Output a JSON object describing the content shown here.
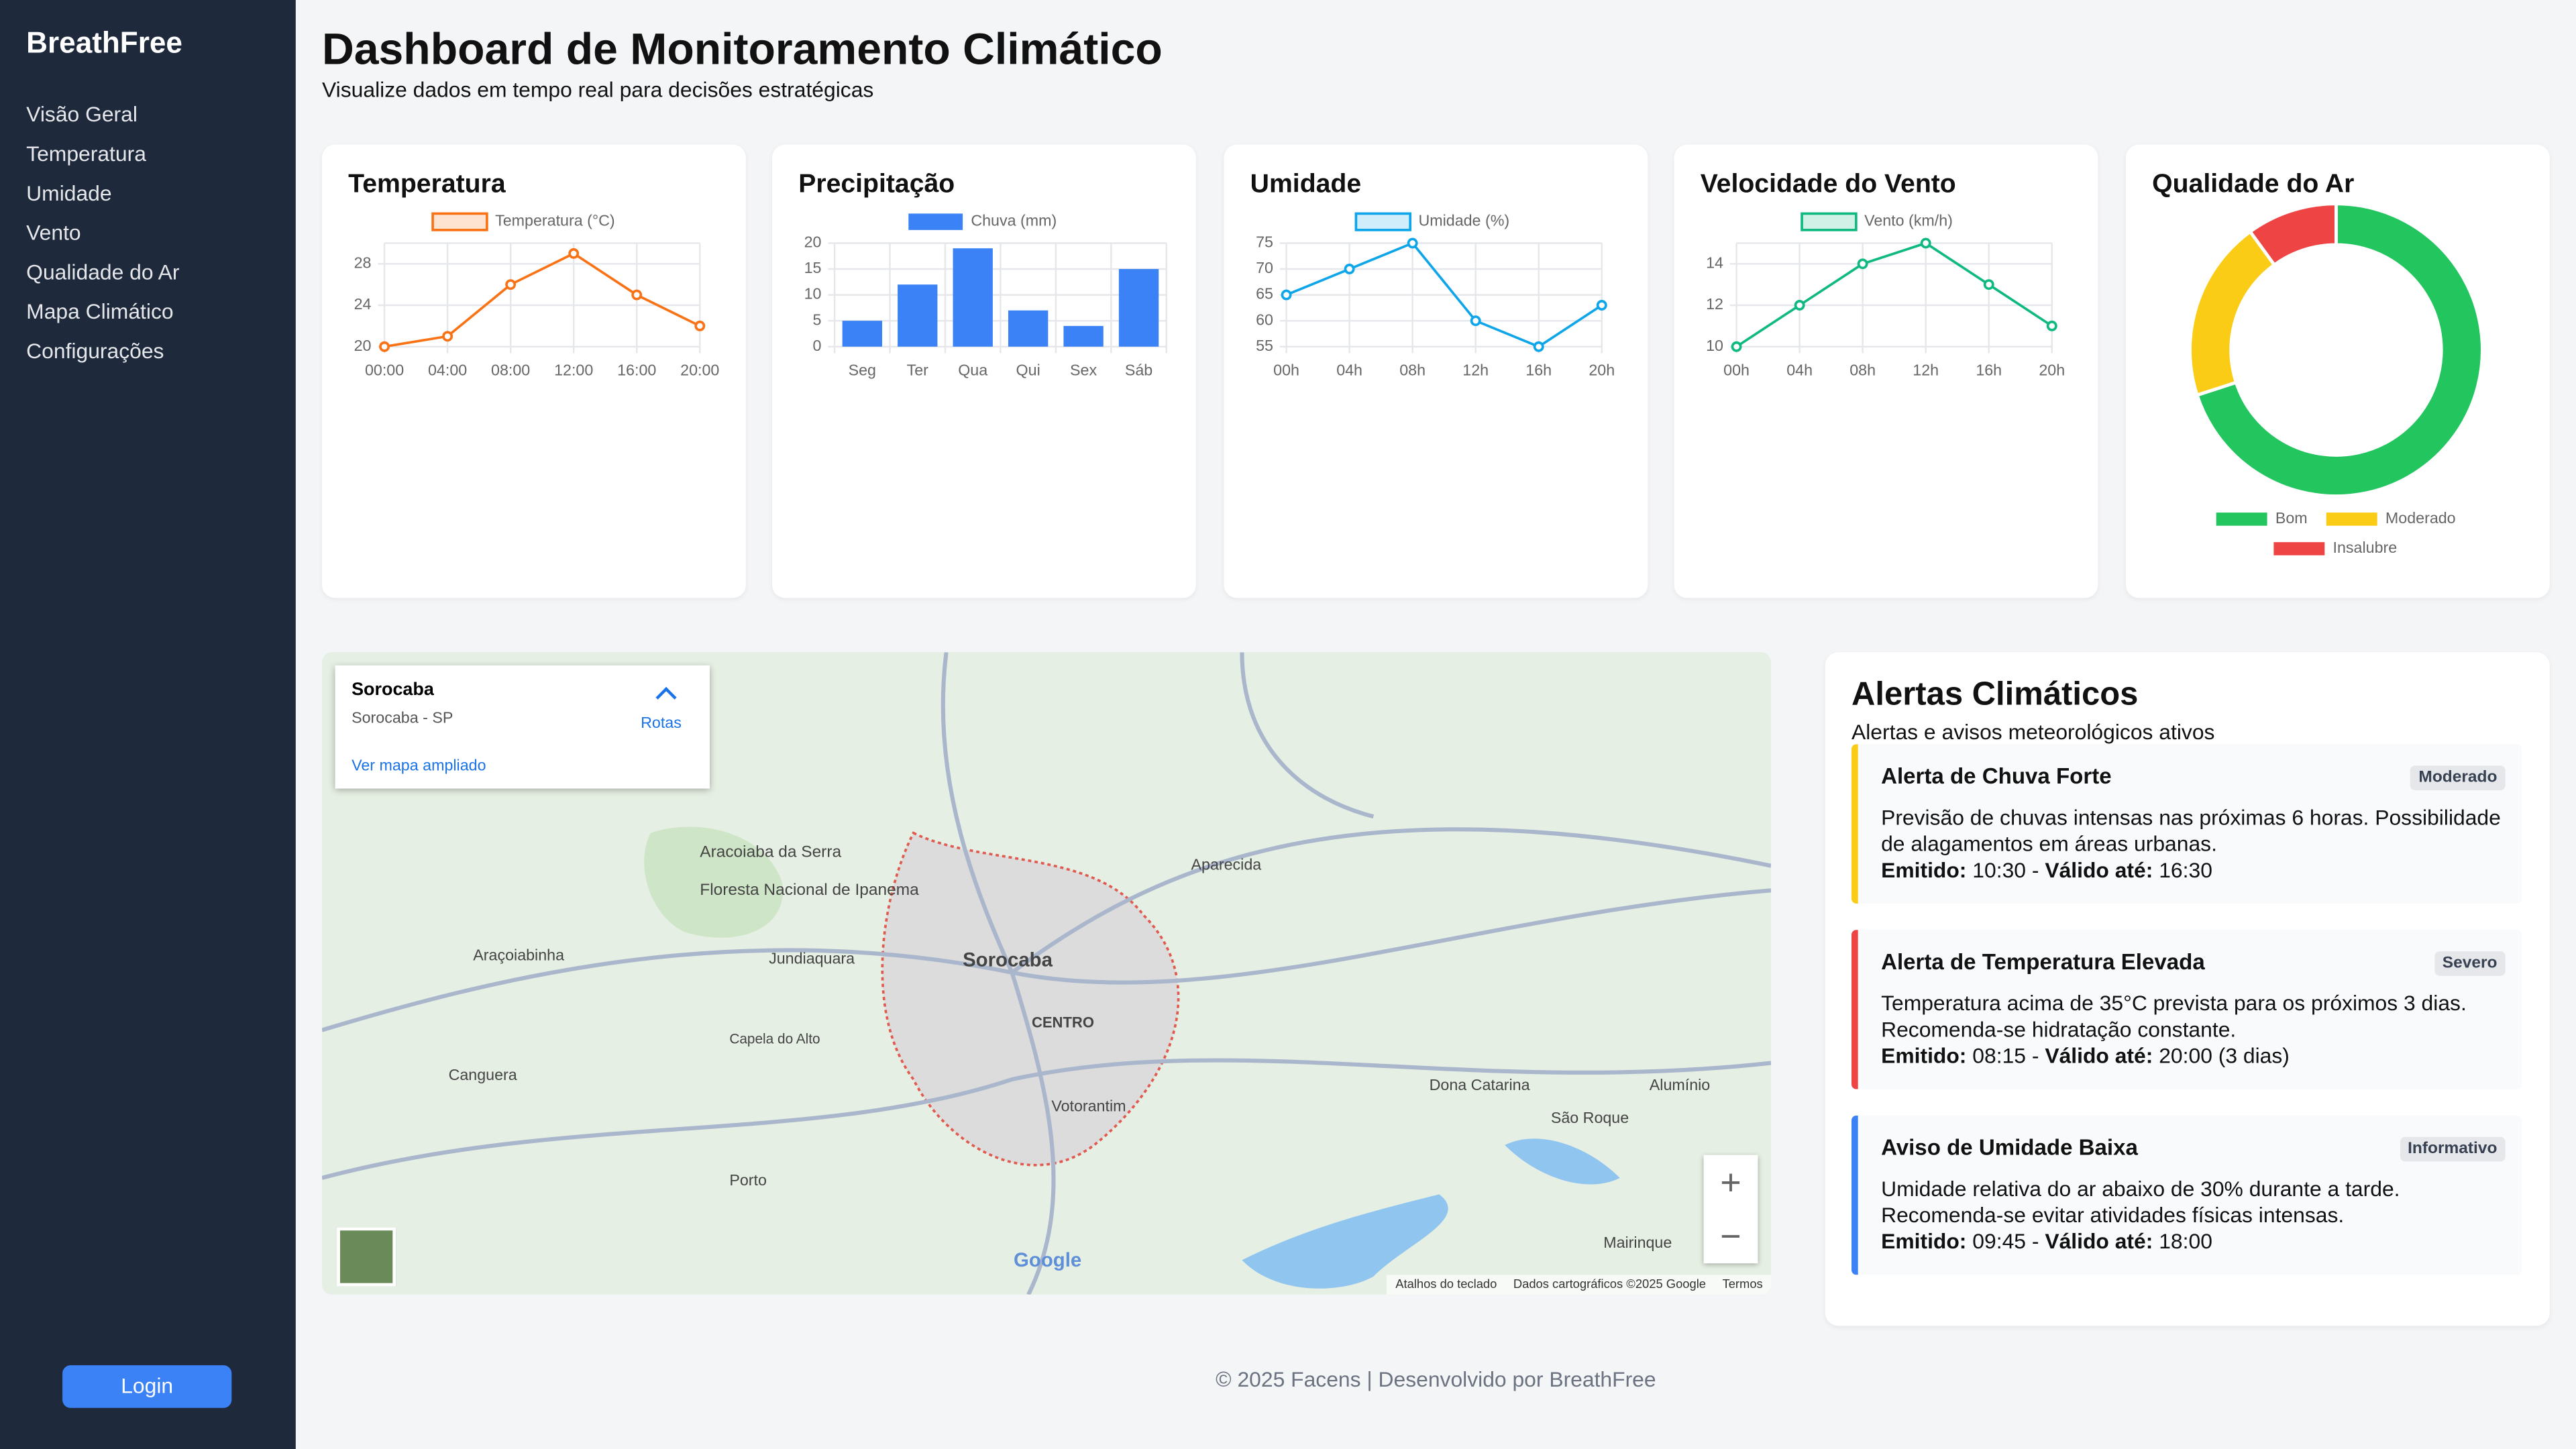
{
  "sidebar": {
    "brand": "BreathFree",
    "nav": [
      "Visão Geral",
      "Temperatura",
      "Umidade",
      "Vento",
      "Qualidade do Ar",
      "Mapa Climático",
      "Configurações"
    ],
    "login": "Login"
  },
  "header": {
    "title": "Dashboard de Monitoramento Climático",
    "subtitle": "Visualize dados em tempo real para decisões estratégicas"
  },
  "chart_data": [
    {
      "type": "line",
      "title": "Temperatura",
      "categories": [
        "00:00",
        "04:00",
        "08:00",
        "12:00",
        "16:00",
        "20:00"
      ],
      "series": [
        {
          "name": "Temperatura (°C)",
          "color": "#f97316",
          "values": [
            20,
            21,
            26,
            29,
            25,
            22
          ]
        }
      ],
      "ylim": [
        20,
        30
      ],
      "yticks": [
        20,
        24,
        28
      ],
      "grid": true
    },
    {
      "type": "bar",
      "title": "Precipitação",
      "categories": [
        "Seg",
        "Ter",
        "Qua",
        "Qui",
        "Sex",
        "Sáb"
      ],
      "series": [
        {
          "name": "Chuva (mm)",
          "color": "#3b82f6",
          "values": [
            5,
            12,
            19,
            7,
            4,
            15
          ]
        }
      ],
      "ylim": [
        0,
        20
      ],
      "yticks": [
        0,
        5,
        10,
        15,
        20
      ],
      "grid": true
    },
    {
      "type": "line",
      "title": "Umidade",
      "categories": [
        "00h",
        "04h",
        "08h",
        "12h",
        "16h",
        "20h"
      ],
      "series": [
        {
          "name": "Umidade (%)",
          "color": "#0ea5e9",
          "values": [
            65,
            70,
            75,
            60,
            55,
            63
          ]
        }
      ],
      "ylim": [
        55,
        75
      ],
      "yticks": [
        55,
        60,
        65,
        70,
        75
      ],
      "grid": true
    },
    {
      "type": "line",
      "title": "Velocidade do Vento",
      "categories": [
        "00h",
        "04h",
        "08h",
        "12h",
        "16h",
        "20h"
      ],
      "series": [
        {
          "name": "Vento (km/h)",
          "color": "#10b981",
          "values": [
            10,
            12,
            14,
            15,
            13,
            11
          ]
        }
      ],
      "ylim": [
        10,
        15
      ],
      "yticks": [
        10,
        12,
        14
      ],
      "grid": true
    },
    {
      "type": "doughnut",
      "title": "Qualidade do Ar",
      "categories": [
        "Bom",
        "Moderado",
        "Insalubre"
      ],
      "values": [
        70,
        20,
        10
      ],
      "colors": [
        "#22c55e",
        "#facc15",
        "#ef4444"
      ]
    }
  ],
  "map": {
    "card_title": "Sorocaba",
    "card_subtitle": "Sorocaba - SP",
    "routes": "Rotas",
    "enlarge": "Ver mapa ampliado",
    "places": [
      "Sorocaba",
      "CENTRO",
      "Votorantim",
      "Aparecida",
      "Dona Catarina",
      "Alumínio",
      "São Roque",
      "Mairinque",
      "Canguera",
      "Porto",
      "Jundiaquara",
      "Araçoiabinha",
      "Capela do Alto",
      "Aracoiaba da Serra",
      "Floresta Nacional de Ipanema"
    ],
    "footer": [
      "Atalhos do teclado",
      "Dados cartográficos ©2025 Google",
      "Termos"
    ],
    "logo": "Google"
  },
  "alerts": {
    "title": "Alertas Climáticos",
    "subtitle": "Alertas e avisos meteorológicos ativos",
    "items": [
      {
        "title": "Alerta de Chuva Forte",
        "badge": "Moderado",
        "lines": [
          "Previsão de chuvas intensas nas próximas 6 horas. Possibilidade",
          "de alagamentos em áreas urbanas."
        ],
        "issued_label": "Emitido:",
        "issued": "10:30 -",
        "valid_label": "Válido até:",
        "valid": "16:30"
      },
      {
        "title": "Alerta de Temperatura Elevada",
        "badge": "Severo",
        "lines": [
          "Temperatura acima de 35°C prevista para os próximos 3 dias.",
          "Recomenda-se hidratação constante."
        ],
        "issued_label": "Emitido:",
        "issued": "08:15 -",
        "valid_label": "Válido até:",
        "valid": "20:00 (3 dias)"
      },
      {
        "title": "Aviso de Umidade Baixa",
        "badge": "Informativo",
        "lines": [
          "Umidade relativa do ar abaixo de 30% durante a tarde.",
          "Recomenda-se evitar atividades físicas intensas."
        ],
        "issued_label": "Emitido:",
        "issued": "09:45 -",
        "valid_label": "Válido até:",
        "valid": "18:00"
      }
    ]
  },
  "footer": "© 2025 Facens | Desenvolvido por BreathFree"
}
